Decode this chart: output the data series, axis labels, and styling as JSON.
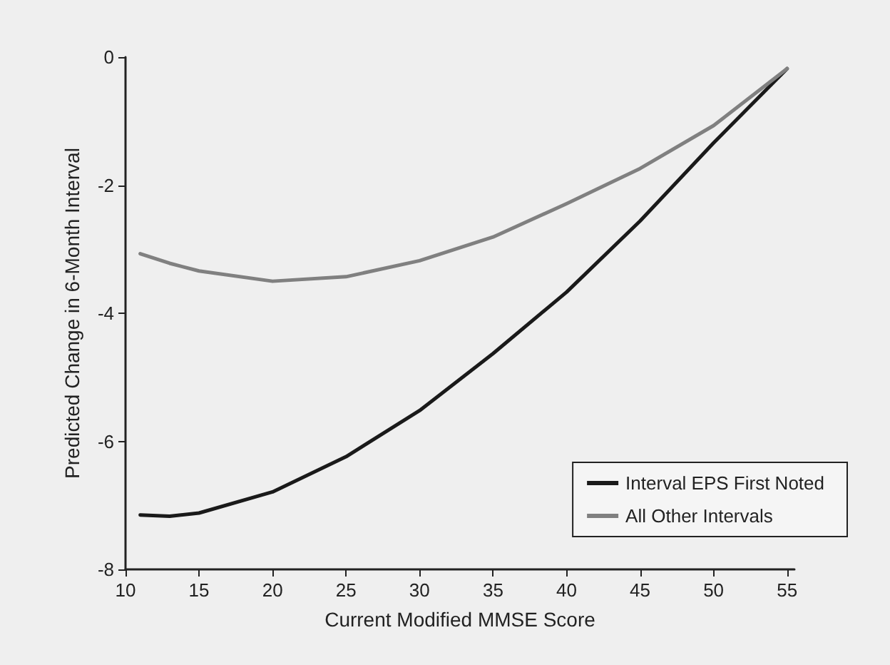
{
  "chart_data": {
    "type": "line",
    "xlabel": "Current Modified MMSE Score",
    "ylabel": "Predicted Change in 6-Month Interval",
    "xlim": [
      10,
      55.5
    ],
    "xticks": [
      10,
      15,
      20,
      25,
      30,
      35,
      40,
      45,
      50,
      55
    ],
    "ylim": [
      -8,
      0
    ],
    "yticks": [
      -8,
      -6,
      -4,
      -2,
      0
    ],
    "grid": false,
    "legend": "bottom right",
    "marker": "none",
    "line_style": "solid",
    "x": [
      11,
      13,
      15,
      20,
      25,
      30,
      35,
      40,
      45,
      50,
      55
    ],
    "series": [
      {
        "name": "Interval EPS First Noted",
        "color": "#1a1a1a",
        "values": [
          -7.15,
          -7.17,
          -7.12,
          -6.79,
          -6.24,
          -5.52,
          -4.63,
          -3.67,
          -2.56,
          -1.34,
          -0.18
        ]
      },
      {
        "name": "All Other Intervals",
        "color": "#808080",
        "values": [
          -3.07,
          -3.22,
          -3.34,
          -3.5,
          -3.43,
          -3.18,
          -2.81,
          -2.29,
          -1.74,
          -1.07,
          -0.18
        ]
      }
    ]
  }
}
